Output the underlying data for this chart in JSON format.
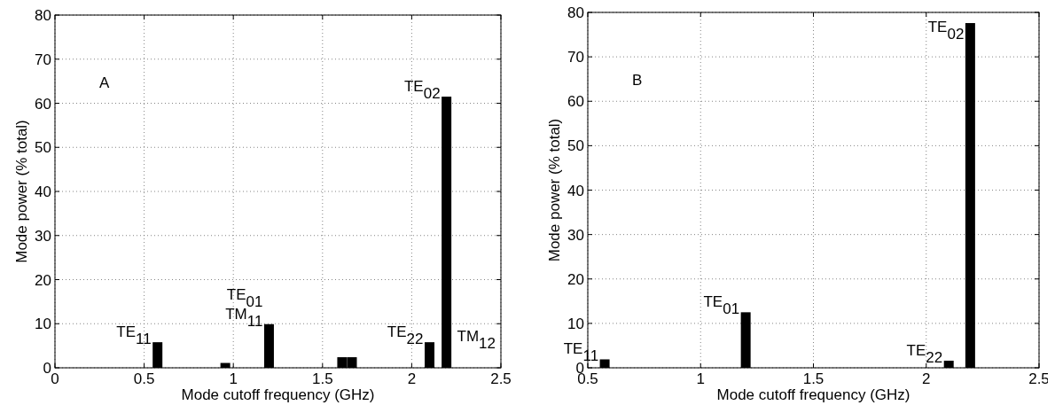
{
  "chart_data": [
    {
      "type": "bar",
      "x": [
        0.575,
        0.955,
        1.2,
        1.61,
        1.665,
        2.1,
        2.195
      ],
      "values": [
        5.8,
        1.1,
        9.9,
        2.4,
        2.4,
        5.8,
        61.5
      ],
      "color": "#000000",
      "xlim": [
        0,
        2.5
      ],
      "xticks": [
        0,
        0.5,
        1,
        1.5,
        2,
        2.5
      ],
      "ylim": [
        0,
        80
      ],
      "yticks": [
        0,
        10,
        20,
        30,
        40,
        50,
        60,
        70,
        80
      ],
      "xlabel": "Mode cutoff frequency (GHz)",
      "ylabel": "Mode power (% total)",
      "grid": true,
      "annotations": [
        "A",
        "TM$_{12}$",
        {
          "text": "TE$_{11}$",
          "x": 0.575,
          "y": 5.8
        },
        {
          "text": "TE$_{01}$",
          "x": 1.2,
          "y": 9.9
        },
        {
          "text": "TM$_{11}$",
          "x": 1.2,
          "y": 9.9
        },
        {
          "text": "TE$_{22}$",
          "x": 2.1,
          "y": 5.8
        },
        {
          "text": "TE$_{02}$",
          "x": 2.195,
          "y": 61.5
        }
      ]
    },
    {
      "type": "bar",
      "x": [
        0.575,
        1.2,
        2.1,
        2.195
      ],
      "values": [
        1.9,
        12.5,
        1.6,
        77.6
      ],
      "color": "#000000",
      "xlim": [
        0.5,
        2.5
      ],
      "xticks": [
        0.5,
        1,
        1.5,
        2,
        2.5
      ],
      "ylim": [
        0,
        80
      ],
      "yticks": [
        0,
        10,
        20,
        30,
        40,
        50,
        60,
        70,
        80
      ],
      "xlabel": "Mode cutoff frequency (GHz)",
      "ylabel": "Mode power (% total)",
      "grid": true,
      "annotations": [
        "B",
        {
          "text": "TE$_{11}$",
          "x": 0.575,
          "y": 1.9
        },
        {
          "text": "TE$_{01}$",
          "x": 1.2,
          "y": 12.5
        },
        {
          "text": "TE$_{22}$",
          "x": 2.1,
          "y": 1.6
        },
        {
          "text": "TE$_{02}$",
          "x": 2.195,
          "y": 77.6
        }
      ]
    }
  ]
}
